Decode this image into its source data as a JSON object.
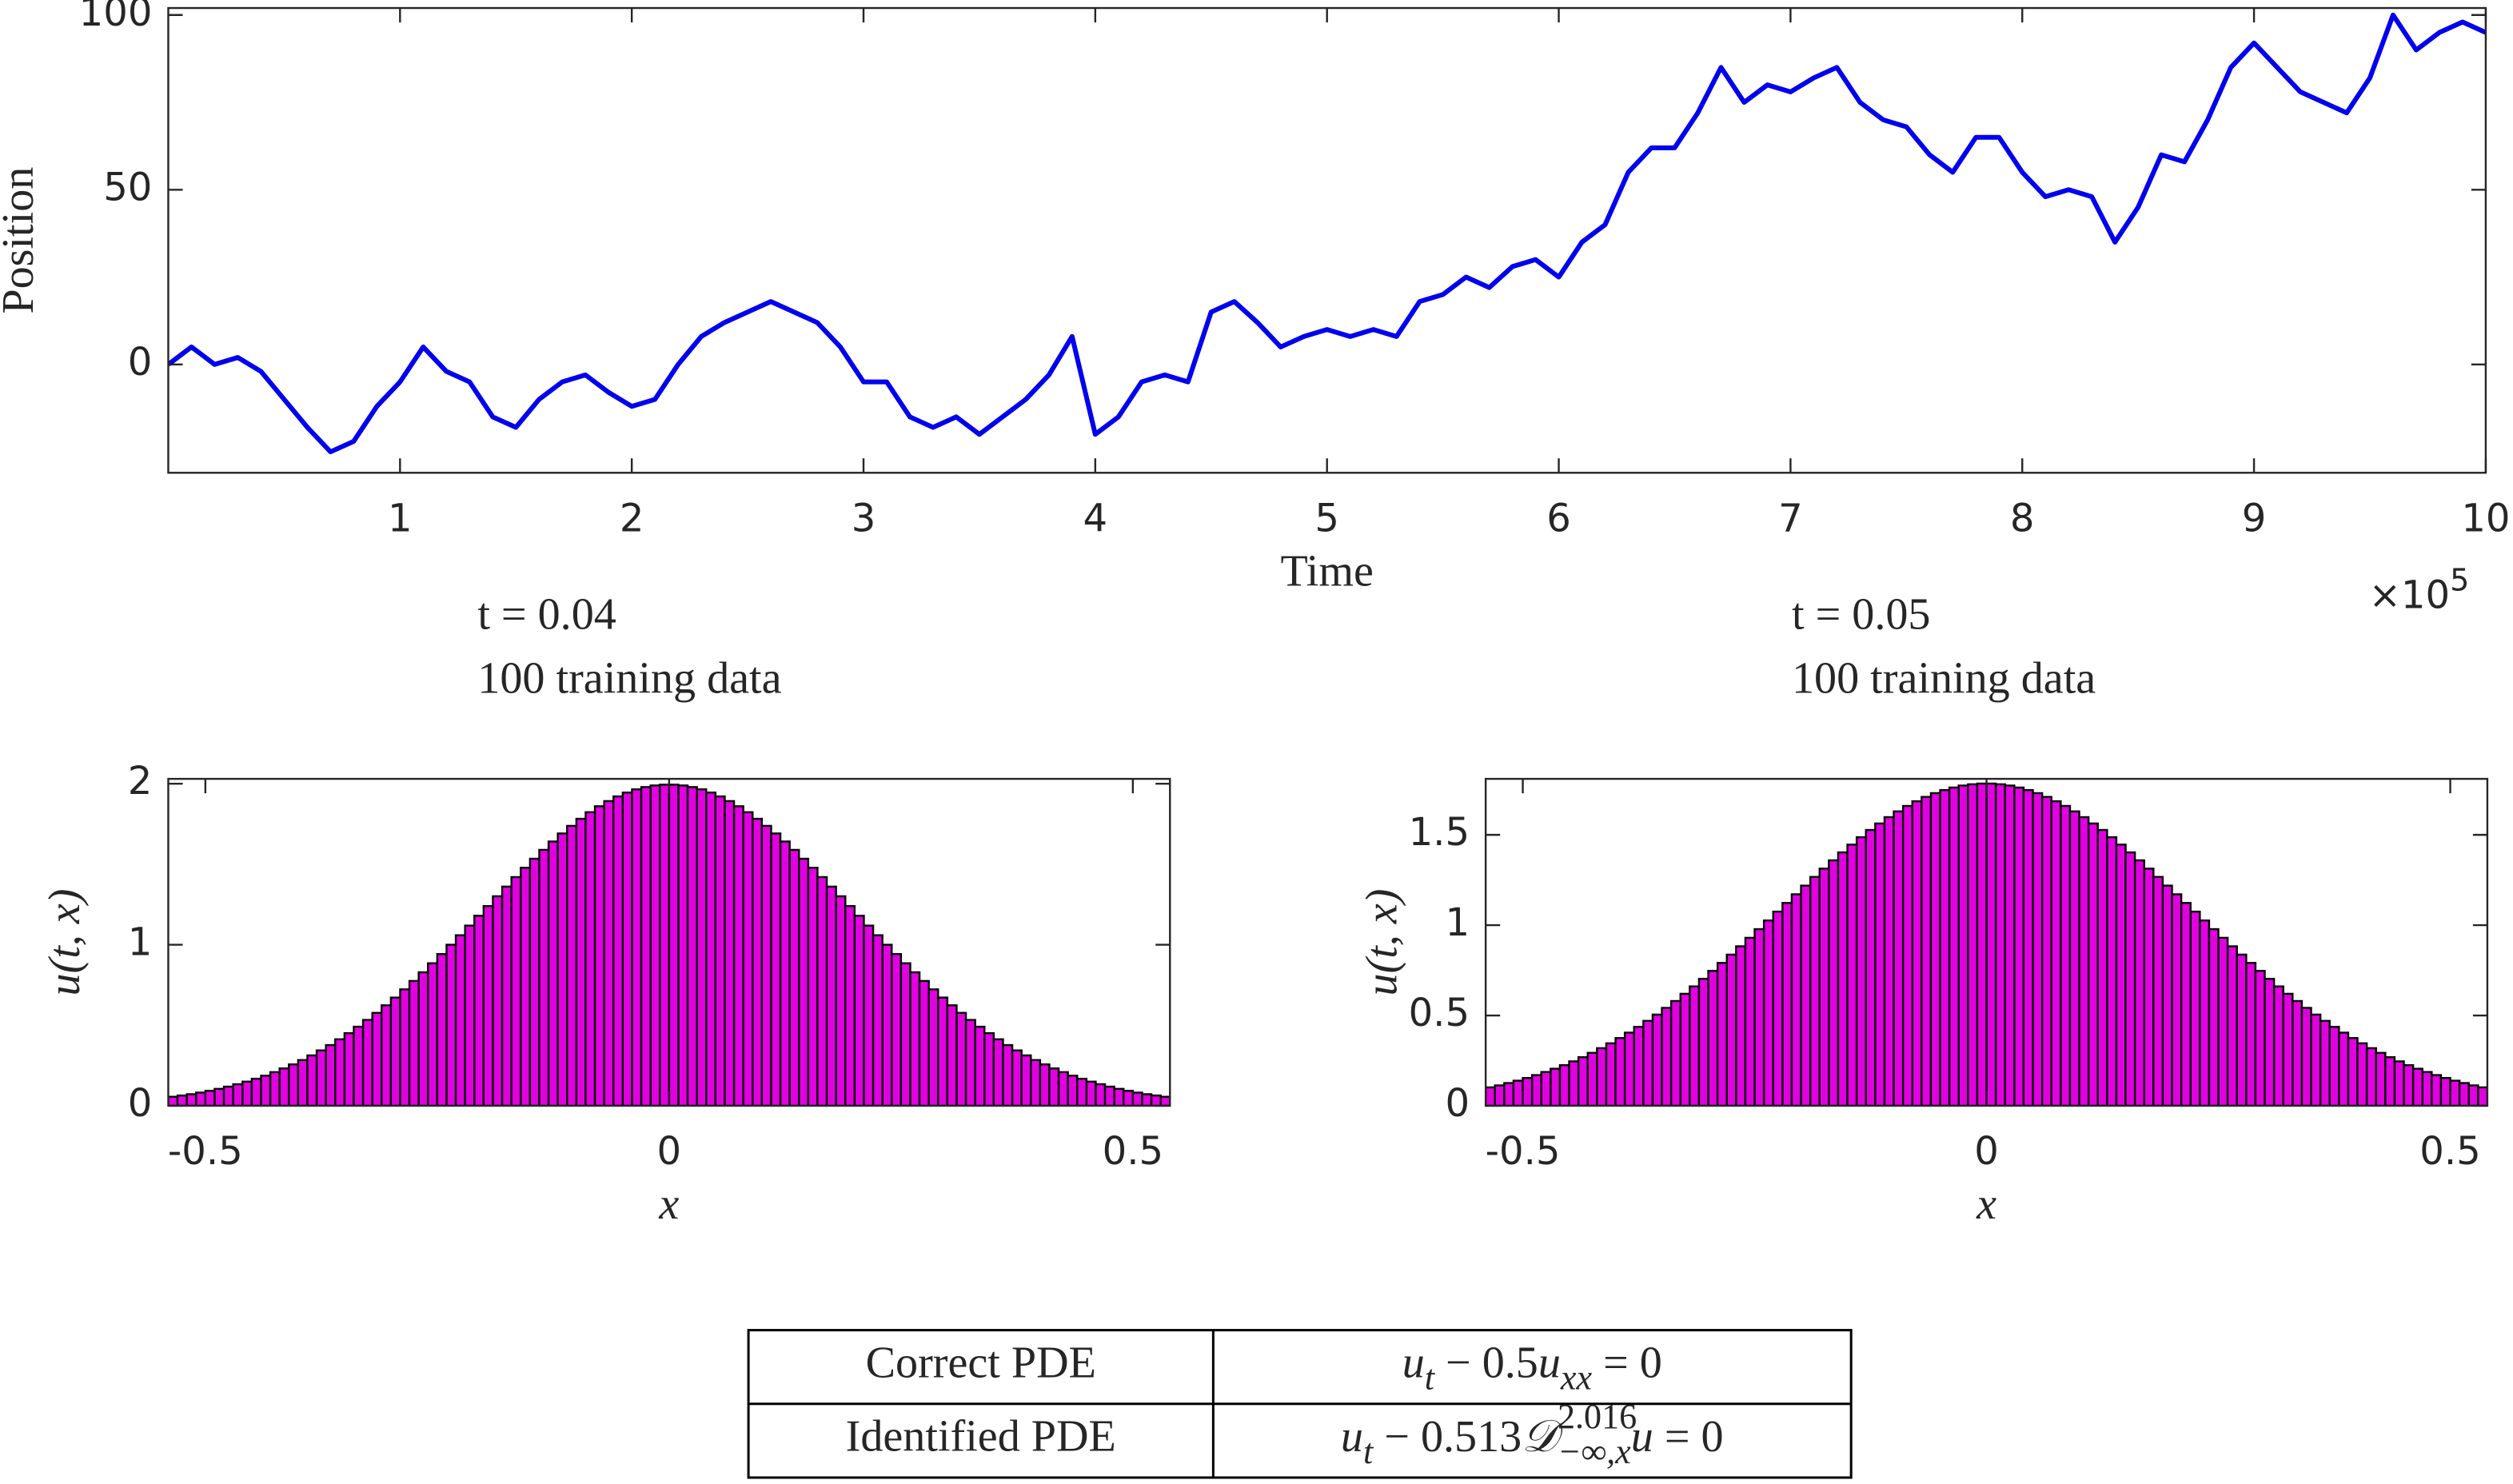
{
  "chart_data": [
    {
      "type": "line",
      "color": "#0000ee",
      "xlabel": "Time",
      "ylabel": "Position",
      "x_multiplier": {
        "base": "×10",
        "exponent": "5"
      },
      "x": [
        0,
        0.1,
        0.2,
        0.3,
        0.4,
        0.5,
        0.6,
        0.7,
        0.8,
        0.9,
        1,
        1.1,
        1.2,
        1.3,
        1.4,
        1.5,
        1.6,
        1.7,
        1.8,
        1.9,
        2,
        2.1,
        2.2,
        2.3,
        2.4,
        2.5,
        2.6,
        2.7,
        2.8,
        2.9,
        3,
        3.1,
        3.2,
        3.3,
        3.4,
        3.5,
        3.6,
        3.7,
        3.8,
        3.9,
        4,
        4.1,
        4.2,
        4.3,
        4.4,
        4.5,
        4.6,
        4.7,
        4.8,
        4.9,
        5,
        5.1,
        5.2,
        5.3,
        5.4,
        5.5,
        5.6,
        5.7,
        5.8,
        5.9,
        6,
        6.1,
        6.2,
        6.3,
        6.4,
        6.5,
        6.6,
        6.7,
        6.8,
        6.9,
        7,
        7.1,
        7.2,
        7.3,
        7.4,
        7.5,
        7.6,
        7.7,
        7.8,
        7.9,
        8,
        8.1,
        8.2,
        8.3,
        8.4,
        8.5,
        8.6,
        8.7,
        8.8,
        8.9,
        9,
        9.1,
        9.2,
        9.3,
        9.4,
        9.5,
        9.6,
        9.7,
        9.8,
        9.9,
        10
      ],
      "values": [
        0,
        5,
        0,
        2,
        -2,
        -10,
        -18,
        -25,
        -22,
        -12,
        -5,
        5,
        -2,
        -5,
        -15,
        -18,
        -10,
        -5,
        -3,
        -8,
        -12,
        -10,
        0,
        8,
        12,
        15,
        18,
        15,
        12,
        5,
        -5,
        -5,
        -15,
        -18,
        -15,
        -20,
        -15,
        -10,
        -3,
        8,
        -20,
        -15,
        -5,
        -3,
        -5,
        15,
        18,
        12,
        5,
        8,
        10,
        8,
        10,
        8,
        18,
        20,
        25,
        22,
        28,
        30,
        25,
        35,
        40,
        55,
        62,
        62,
        72,
        85,
        75,
        80,
        78,
        82,
        85,
        75,
        70,
        68,
        60,
        55,
        65,
        65,
        55,
        48,
        50,
        48,
        35,
        45,
        60,
        58,
        70,
        85,
        92,
        85,
        78,
        75,
        72,
        82,
        100,
        90,
        95,
        98,
        95
      ],
      "xlim": [
        0,
        10
      ],
      "xticks": [
        1,
        2,
        3,
        4,
        5,
        6,
        7,
        8,
        9,
        10
      ],
      "ylim": [
        -31,
        102
      ],
      "yticks": [
        0,
        50,
        100
      ]
    },
    {
      "type": "histogram",
      "color": "#e000e0",
      "xlabel": "x",
      "ylabel": "u(t, x)",
      "annotations": [
        "t = 0.04",
        "100 training data"
      ],
      "bins": [
        -0.54,
        -0.53,
        -0.52,
        -0.51,
        -0.5,
        -0.49,
        -0.48,
        -0.47,
        -0.46,
        -0.45,
        -0.44,
        -0.43,
        -0.42,
        -0.41,
        -0.4,
        -0.39,
        -0.38,
        -0.37,
        -0.36,
        -0.35,
        -0.34,
        -0.33,
        -0.32,
        -0.31,
        -0.3,
        -0.29,
        -0.28,
        -0.27,
        -0.26,
        -0.25,
        -0.24,
        -0.23,
        -0.22,
        -0.21,
        -0.2,
        -0.19,
        -0.18,
        -0.17,
        -0.16,
        -0.15,
        -0.14,
        -0.13,
        -0.12,
        -0.11,
        -0.1,
        -0.09,
        -0.08,
        -0.07,
        -0.06,
        -0.05,
        -0.04,
        -0.03,
        -0.02,
        -0.01,
        0,
        0.01,
        0.02,
        0.03,
        0.04,
        0.05,
        0.06,
        0.07,
        0.08,
        0.09,
        0.1,
        0.11,
        0.12,
        0.13,
        0.14,
        0.15,
        0.16,
        0.17,
        0.18,
        0.19,
        0.2,
        0.21,
        0.22,
        0.23,
        0.24,
        0.25,
        0.26,
        0.27,
        0.28,
        0.29,
        0.3,
        0.31,
        0.32,
        0.33,
        0.34,
        0.35,
        0.36,
        0.37,
        0.38,
        0.39,
        0.4,
        0.41,
        0.42,
        0.43,
        0.44,
        0.45,
        0.46,
        0.47,
        0.48,
        0.49,
        0.5,
        0.51,
        0.52,
        0.53,
        0.54
      ],
      "values": [
        0.056,
        0.064,
        0.072,
        0.082,
        0.093,
        0.105,
        0.119,
        0.134,
        0.15,
        0.168,
        0.187,
        0.209,
        0.232,
        0.257,
        0.284,
        0.313,
        0.344,
        0.377,
        0.413,
        0.451,
        0.491,
        0.533,
        0.577,
        0.624,
        0.672,
        0.723,
        0.775,
        0.829,
        0.885,
        0.942,
        1.0,
        1.059,
        1.119,
        1.18,
        1.24,
        1.301,
        1.361,
        1.42,
        1.478,
        1.534,
        1.589,
        1.641,
        1.691,
        1.738,
        1.782,
        1.823,
        1.86,
        1.892,
        1.921,
        1.945,
        1.965,
        1.979,
        1.989,
        1.994,
        1.994,
        1.989,
        1.979,
        1.965,
        1.945,
        1.921,
        1.892,
        1.86,
        1.823,
        1.782,
        1.738,
        1.691,
        1.641,
        1.589,
        1.534,
        1.478,
        1.42,
        1.361,
        1.301,
        1.24,
        1.18,
        1.119,
        1.059,
        1.0,
        0.942,
        0.885,
        0.829,
        0.775,
        0.723,
        0.672,
        0.624,
        0.577,
        0.533,
        0.491,
        0.451,
        0.413,
        0.377,
        0.344,
        0.313,
        0.284,
        0.257,
        0.232,
        0.209,
        0.187,
        0.168,
        0.15,
        0.134,
        0.119,
        0.105,
        0.093,
        0.082,
        0.072,
        0.064,
        0.056
      ],
      "xlim": [
        -0.54,
        0.54
      ],
      "xticks": [
        -0.5,
        0,
        0.5
      ],
      "ylim": [
        0,
        2.03
      ],
      "yticks": [
        0,
        1,
        2
      ]
    },
    {
      "type": "histogram",
      "color": "#e000e0",
      "xlabel": "x",
      "ylabel": "u(t, x)",
      "annotations": [
        "t = 0.05",
        "100 training data"
      ],
      "bins": [
        -0.54,
        -0.53,
        -0.52,
        -0.51,
        -0.5,
        -0.49,
        -0.48,
        -0.47,
        -0.46,
        -0.45,
        -0.44,
        -0.43,
        -0.42,
        -0.41,
        -0.4,
        -0.39,
        -0.38,
        -0.37,
        -0.36,
        -0.35,
        -0.34,
        -0.33,
        -0.32,
        -0.31,
        -0.3,
        -0.29,
        -0.28,
        -0.27,
        -0.26,
        -0.25,
        -0.24,
        -0.23,
        -0.22,
        -0.21,
        -0.2,
        -0.19,
        -0.18,
        -0.17,
        -0.16,
        -0.15,
        -0.14,
        -0.13,
        -0.12,
        -0.11,
        -0.1,
        -0.09,
        -0.08,
        -0.07,
        -0.06,
        -0.05,
        -0.04,
        -0.03,
        -0.02,
        -0.01,
        0,
        0.01,
        0.02,
        0.03,
        0.04,
        0.05,
        0.06,
        0.07,
        0.08,
        0.09,
        0.1,
        0.11,
        0.12,
        0.13,
        0.14,
        0.15,
        0.16,
        0.17,
        0.18,
        0.19,
        0.2,
        0.21,
        0.22,
        0.23,
        0.24,
        0.25,
        0.26,
        0.27,
        0.28,
        0.29,
        0.3,
        0.31,
        0.32,
        0.33,
        0.34,
        0.35,
        0.36,
        0.37,
        0.38,
        0.39,
        0.4,
        0.41,
        0.42,
        0.43,
        0.44,
        0.45,
        0.46,
        0.47,
        0.48,
        0.49,
        0.5,
        0.51,
        0.52,
        0.53,
        0.54
      ],
      "values": [
        0.102,
        0.113,
        0.126,
        0.139,
        0.154,
        0.17,
        0.187,
        0.205,
        0.225,
        0.246,
        0.269,
        0.293,
        0.319,
        0.346,
        0.375,
        0.405,
        0.437,
        0.47,
        0.505,
        0.542,
        0.58,
        0.62,
        0.661,
        0.703,
        0.747,
        0.791,
        0.837,
        0.883,
        0.93,
        0.978,
        1.026,
        1.075,
        1.123,
        1.171,
        1.219,
        1.267,
        1.313,
        1.359,
        1.403,
        1.446,
        1.487,
        1.527,
        1.563,
        1.598,
        1.63,
        1.66,
        1.686,
        1.71,
        1.731,
        1.748,
        1.762,
        1.773,
        1.78,
        1.784,
        1.784,
        1.78,
        1.773,
        1.762,
        1.748,
        1.731,
        1.71,
        1.686,
        1.66,
        1.63,
        1.598,
        1.563,
        1.527,
        1.487,
        1.446,
        1.403,
        1.359,
        1.313,
        1.267,
        1.219,
        1.171,
        1.123,
        1.075,
        1.026,
        0.978,
        0.93,
        0.883,
        0.837,
        0.791,
        0.747,
        0.703,
        0.661,
        0.62,
        0.58,
        0.542,
        0.505,
        0.47,
        0.437,
        0.405,
        0.375,
        0.346,
        0.319,
        0.293,
        0.269,
        0.246,
        0.225,
        0.205,
        0.187,
        0.17,
        0.154,
        0.139,
        0.126,
        0.113,
        0.102
      ],
      "xlim": [
        -0.54,
        0.54
      ],
      "xticks": [
        -0.5,
        0,
        0.5
      ],
      "ylim": [
        0,
        1.81
      ],
      "yticks": [
        0,
        0.5,
        1,
        1.5
      ]
    }
  ],
  "table": {
    "rows": [
      [
        "Correct PDE",
        [
          {
            "text": "u",
            "italic": true
          },
          {
            "text": "t",
            "role": "sub",
            "italic": true
          },
          {
            "text": " − 0.5"
          },
          {
            "text": "u",
            "italic": true
          },
          {
            "text": "xx",
            "role": "sub",
            "italic": true
          },
          {
            "text": " = 0"
          }
        ]
      ],
      [
        "Identified PDE",
        [
          {
            "text": "u",
            "italic": true
          },
          {
            "text": "t",
            "role": "sub",
            "italic": true
          },
          {
            "text": " − 0.513"
          },
          {
            "text": "𝒟",
            "italic": true
          },
          {
            "text": "2.016",
            "role": "sup"
          },
          {
            "text": "−∞,x",
            "role": "sub",
            "italic": true
          },
          {
            "text": "u",
            "italic": true
          },
          {
            "text": " = 0"
          }
        ]
      ]
    ]
  }
}
